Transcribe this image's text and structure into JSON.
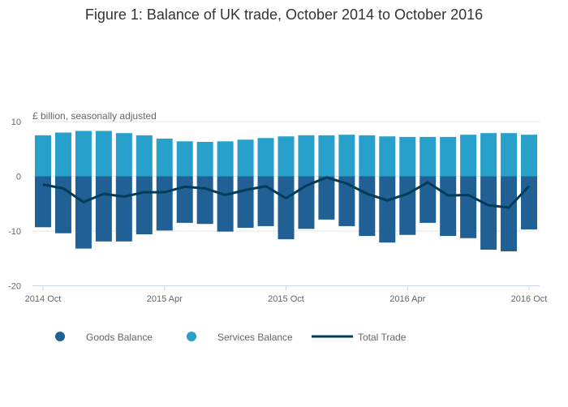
{
  "chart_data": {
    "type": "bar",
    "title": "Figure 1: Balance of UK trade, October 2014 to October 2016",
    "ylabel": "£ billion, seasonally adjusted",
    "ylim": [
      -20,
      10
    ],
    "yticks": [
      10,
      0,
      -10,
      -20
    ],
    "xticks": [
      "2014 Oct",
      "2015 Apr",
      "2015 Oct",
      "2016 Apr",
      "2016 Oct"
    ],
    "xtick_index": [
      0,
      6,
      12,
      18,
      24
    ],
    "stacked": true,
    "grid": true,
    "legend_placement": "bottom",
    "categories": [
      "2014 Oct",
      "2014 Nov",
      "2014 Dec",
      "2015 Jan",
      "2015 Feb",
      "2015 Mar",
      "2015 Apr",
      "2015 May",
      "2015 Jun",
      "2015 Jul",
      "2015 Aug",
      "2015 Sep",
      "2015 Oct",
      "2015 Nov",
      "2015 Dec",
      "2016 Jan",
      "2016 Feb",
      "2016 Mar",
      "2016 Apr",
      "2016 May",
      "2016 Jun",
      "2016 Jul",
      "2016 Aug",
      "2016 Sep",
      "2016 Oct"
    ],
    "series": [
      {
        "name": "Goods Balance",
        "kind": "bar",
        "color": "#206095",
        "values": [
          -9.3,
          -10.4,
          -13.2,
          -11.9,
          -11.9,
          -10.6,
          -9.9,
          -8.5,
          -8.7,
          -10.1,
          -9.4,
          -9.1,
          -11.5,
          -9.6,
          -7.9,
          -9.1,
          -10.9,
          -12.1,
          -10.7,
          -8.5,
          -10.9,
          -11.3,
          -13.4,
          -13.7,
          -9.7
        ]
      },
      {
        "name": "Services Balance",
        "kind": "bar",
        "color": "#27a0cc",
        "values": [
          7.5,
          8.0,
          8.3,
          8.3,
          7.9,
          7.5,
          6.9,
          6.4,
          6.3,
          6.4,
          6.7,
          7.0,
          7.3,
          7.5,
          7.5,
          7.6,
          7.5,
          7.3,
          7.2,
          7.2,
          7.2,
          7.6,
          7.9,
          7.9,
          7.6
        ]
      },
      {
        "name": "Total Trade",
        "kind": "line",
        "color": "#003c57",
        "values": [
          -1.5,
          -2.2,
          -4.7,
          -3.2,
          -3.7,
          -2.9,
          -2.9,
          -1.9,
          -2.2,
          -3.4,
          -2.5,
          -1.8,
          -4.0,
          -1.7,
          -0.2,
          -1.3,
          -3.2,
          -4.4,
          -3.2,
          -1.1,
          -3.5,
          -3.4,
          -5.3,
          -5.7,
          -1.8
        ]
      }
    ]
  }
}
